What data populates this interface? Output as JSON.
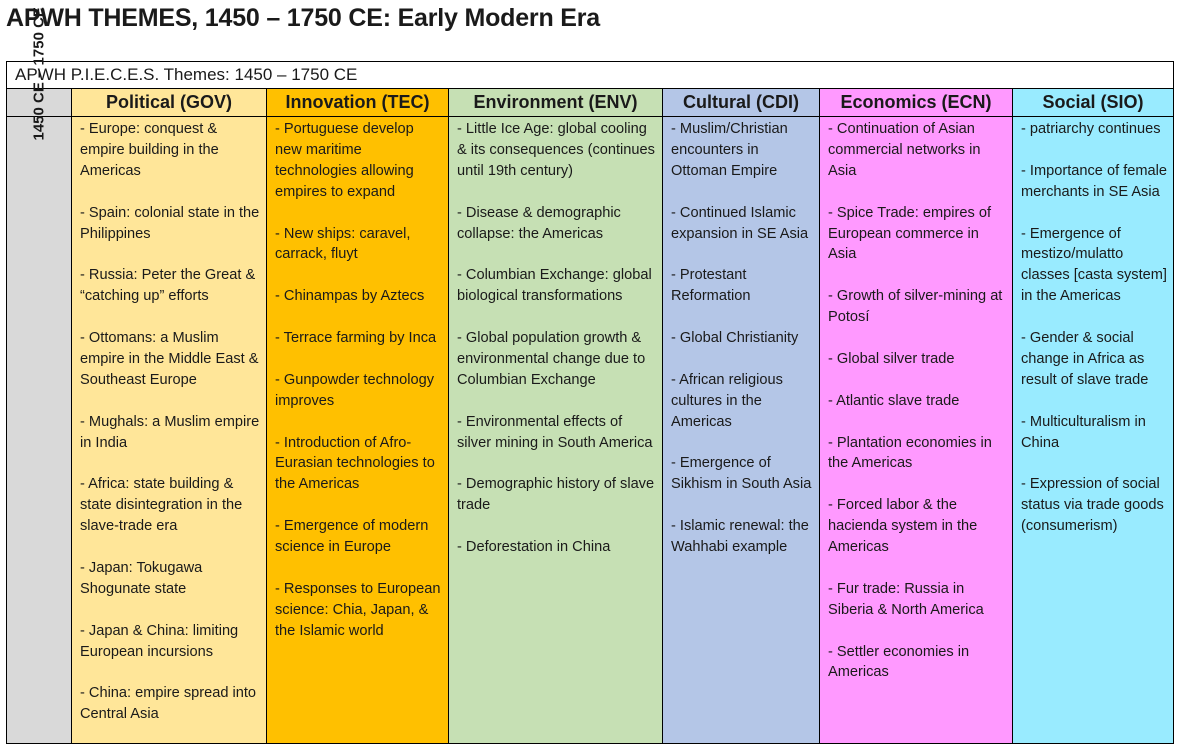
{
  "document": {
    "title": "APWH THEMES, 1450 – 1750 CE: Early Modern Era"
  },
  "table": {
    "caption": "APWH P.I.E.C.E.S. Themes: 1450 – 1750 CE",
    "row_label": "1450 CE – 1750 CE",
    "colors": {
      "political": "#ffe699",
      "innovation": "#ffc000",
      "environment": "#c6e0b4",
      "cultural": "#b4c6e7",
      "economics": "#ff99ff",
      "social": "#99ebff",
      "row_label_bg": "#d9d9d9"
    },
    "columns": [
      {
        "heading": "Political (GOV)",
        "items": [
          "- Europe: conquest & empire building in the Americas",
          "- Spain: colonial state in the Philippines",
          "- Russia: Peter the Great & “catching up” efforts",
          "- Ottomans: a Muslim empire in the Middle East & Southeast Europe",
          "- Mughals: a Muslim empire in India",
          "- Africa: state building & state disintegration in the slave-trade era",
          "- Japan: Tokugawa Shogunate state",
          "- Japan & China: limiting European incursions",
          "- China: empire spread into Central Asia"
        ]
      },
      {
        "heading": "Innovation (TEC)",
        "items": [
          "- Portuguese develop new maritime technologies allowing empires to expand",
          "- New ships: caravel, carrack, fluyt",
          "- Chinampas by Aztecs",
          "- Terrace farming by Inca",
          "- Gunpowder technology improves",
          "- Introduction of Afro-Eurasian technologies to the Americas",
          "- Emergence of modern science in Europe",
          "- Responses to European science: Chia, Japan, & the Islamic world"
        ]
      },
      {
        "heading": "Environment (ENV)",
        "items": [
          "- Little Ice Age: global cooling & its consequences (continues until 19th century)",
          "- Disease & demographic collapse: the Americas",
          "- Columbian Exchange: global biological transformations",
          "- Global population growth & environmental change due to Columbian Exchange",
          "- Environmental effects of silver mining in South America",
          "- Demographic history of slave trade",
          "- Deforestation in China"
        ]
      },
      {
        "heading": "Cultural (CDI)",
        "items": [
          "- Muslim/Christian encounters in Ottoman Empire",
          "- Continued Islamic expansion in SE Asia",
          "- Protestant Reformation",
          "- Global Christianity",
          "- African religious cultures in the Americas",
          "- Emergence of Sikhism in South Asia",
          "- Islamic renewal: the Wahhabi example"
        ]
      },
      {
        "heading": "Economics (ECN)",
        "items": [
          "- Continuation of Asian commercial networks in Asia",
          "- Spice Trade: empires of European commerce in Asia",
          "- Growth of silver-mining at Potosí",
          "- Global silver trade",
          "- Atlantic slave trade",
          "- Plantation economies in the Americas",
          "- Forced labor & the hacienda system in the Americas",
          "- Fur trade: Russia in Siberia & North America",
          "- Settler economies in Americas"
        ]
      },
      {
        "heading": "Social (SIO)",
        "items": [
          "- patriarchy continues",
          "- Importance of female merchants in SE Asia",
          "- Emergence of mestizo/mulatto classes [casta system] in the Americas",
          "- Gender & social change in Africa as result of slave trade",
          "- Multiculturalism in China",
          "- Expression of social status via trade goods (consumerism)"
        ]
      }
    ]
  }
}
